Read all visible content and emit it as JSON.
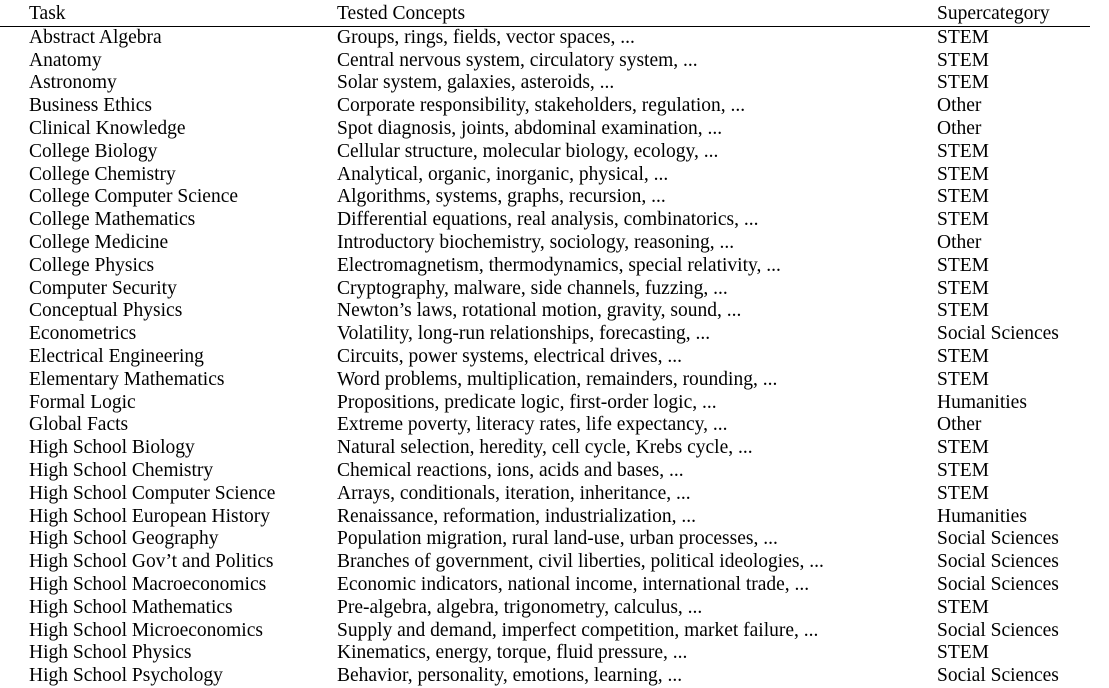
{
  "headers": {
    "task": "Task",
    "concepts": "Tested Concepts",
    "supercategory": "Supercategory"
  },
  "rows": [
    {
      "task": "Abstract Algebra",
      "concepts": "Groups, rings, fields, vector spaces, ...",
      "supercategory": "STEM"
    },
    {
      "task": "Anatomy",
      "concepts": "Central nervous system, circulatory system, ...",
      "supercategory": "STEM"
    },
    {
      "task": "Astronomy",
      "concepts": "Solar system, galaxies, asteroids, ...",
      "supercategory": "STEM"
    },
    {
      "task": "Business Ethics",
      "concepts": "Corporate responsibility, stakeholders, regulation, ...",
      "supercategory": "Other"
    },
    {
      "task": "Clinical Knowledge",
      "concepts": "Spot diagnosis, joints, abdominal examination, ...",
      "supercategory": "Other"
    },
    {
      "task": "College Biology",
      "concepts": "Cellular structure, molecular biology, ecology, ...",
      "supercategory": "STEM"
    },
    {
      "task": "College Chemistry",
      "concepts": "Analytical, organic, inorganic, physical, ...",
      "supercategory": "STEM"
    },
    {
      "task": "College Computer Science",
      "concepts": "Algorithms, systems, graphs, recursion, ...",
      "supercategory": "STEM"
    },
    {
      "task": "College Mathematics",
      "concepts": "Differential equations, real analysis, combinatorics, ...",
      "supercategory": "STEM"
    },
    {
      "task": "College Medicine",
      "concepts": "Introductory biochemistry, sociology, reasoning, ...",
      "supercategory": "Other"
    },
    {
      "task": "College Physics",
      "concepts": "Electromagnetism, thermodynamics, special relativity, ...",
      "supercategory": "STEM"
    },
    {
      "task": "Computer Security",
      "concepts": "Cryptography, malware, side channels, fuzzing, ...",
      "supercategory": "STEM"
    },
    {
      "task": "Conceptual Physics",
      "concepts": "Newton’s laws, rotational motion, gravity, sound, ...",
      "supercategory": "STEM"
    },
    {
      "task": "Econometrics",
      "concepts": "Volatility, long-run relationships, forecasting, ...",
      "supercategory": "Social Sciences"
    },
    {
      "task": "Electrical Engineering",
      "concepts": "Circuits, power systems, electrical drives, ...",
      "supercategory": "STEM"
    },
    {
      "task": "Elementary Mathematics",
      "concepts": "Word problems, multiplication, remainders, rounding, ...",
      "supercategory": "STEM"
    },
    {
      "task": "Formal Logic",
      "concepts": "Propositions, predicate logic, first-order logic, ...",
      "supercategory": "Humanities"
    },
    {
      "task": "Global Facts",
      "concepts": "Extreme poverty, literacy rates, life expectancy, ...",
      "supercategory": "Other"
    },
    {
      "task": "High School Biology",
      "concepts": "Natural selection, heredity, cell cycle, Krebs cycle, ...",
      "supercategory": "STEM"
    },
    {
      "task": "High School Chemistry",
      "concepts": "Chemical reactions, ions, acids and bases, ...",
      "supercategory": "STEM"
    },
    {
      "task": "High School Computer Science",
      "concepts": "Arrays, conditionals, iteration, inheritance, ...",
      "supercategory": "STEM"
    },
    {
      "task": "High School European History",
      "concepts": "Renaissance, reformation, industrialization, ...",
      "supercategory": "Humanities"
    },
    {
      "task": "High School Geography",
      "concepts": "Population migration, rural land-use, urban processes, ...",
      "supercategory": "Social Sciences"
    },
    {
      "task": "High School Gov’t and Politics",
      "concepts": "Branches of government, civil liberties, political ideologies, ...",
      "supercategory": "Social Sciences"
    },
    {
      "task": "High School Macroeconomics",
      "concepts": "Economic indicators, national income, international trade, ...",
      "supercategory": "Social Sciences"
    },
    {
      "task": "High School Mathematics",
      "concepts": "Pre-algebra, algebra, trigonometry, calculus, ...",
      "supercategory": "STEM"
    },
    {
      "task": "High School Microeconomics",
      "concepts": "Supply and demand, imperfect competition, market failure, ...",
      "supercategory": "Social Sciences"
    },
    {
      "task": "High School Physics",
      "concepts": "Kinematics, energy, torque, fluid pressure, ...",
      "supercategory": "STEM"
    },
    {
      "task": "High School Psychology",
      "concepts": "Behavior, personality, emotions, learning, ...",
      "supercategory": "Social Sciences"
    }
  ]
}
